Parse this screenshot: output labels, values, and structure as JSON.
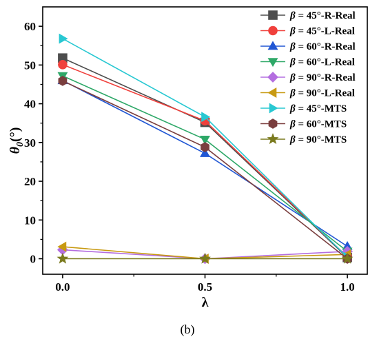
{
  "chart_data": {
    "type": "line",
    "xlabel": "λ",
    "ylabel_main": "θ",
    "ylabel_sub": "0",
    "ylabel_unit": "(°)",
    "caption": "(b)",
    "x": [
      0.0,
      0.5,
      1.0
    ],
    "x_ticks": [
      "0.0",
      "0.5",
      "1.0"
    ],
    "y_ticks": [
      "0",
      "10",
      "20",
      "30",
      "40",
      "50",
      "60"
    ],
    "xlim": [
      -0.07,
      1.07
    ],
    "ylim": [
      -4,
      65
    ],
    "legend_position": "top-right",
    "series": [
      {
        "name": "β = 45°-R-Real",
        "prefix": "β",
        "suffix": " = 45°-R-Real",
        "marker": "square",
        "color": "#4d4d4d",
        "values": [
          51.8,
          35.2,
          0.3
        ]
      },
      {
        "name": "β = 45°-L-Real",
        "prefix": "β",
        "suffix": " = 45°-L-Real",
        "marker": "circle",
        "color": "#f0403c",
        "values": [
          50.1,
          35.6,
          0.5
        ]
      },
      {
        "name": "β = 60°-R-Real",
        "prefix": "β",
        "suffix": " = 60°-R-Real",
        "marker": "triangle-up",
        "color": "#2157d4",
        "values": [
          46.0,
          27.2,
          3.2
        ]
      },
      {
        "name": "β = 60°-L-Real",
        "prefix": "β",
        "suffix": " = 60°-L-Real",
        "marker": "triangle-down",
        "color": "#2ea868",
        "values": [
          47.2,
          30.8,
          1.9
        ]
      },
      {
        "name": "β = 90°-R-Real",
        "prefix": "β",
        "suffix": " = 90°-R-Real",
        "marker": "diamond",
        "color": "#b46ee0",
        "values": [
          2.3,
          0.0,
          1.9
        ]
      },
      {
        "name": "β = 90°-L-Real",
        "prefix": "β",
        "suffix": " = 90°-L-Real",
        "marker": "triangle-left",
        "color": "#c89a12",
        "values": [
          3.1,
          0.0,
          1.1
        ]
      },
      {
        "name": "β = 45°-MTS",
        "prefix": "β",
        "suffix": " = 45°-MTS",
        "marker": "triangle-right",
        "color": "#28c8d2",
        "values": [
          56.8,
          36.6,
          0.4
        ]
      },
      {
        "name": "β = 60°-MTS",
        "prefix": "β",
        "suffix": " = 60°-MTS",
        "marker": "hexagon",
        "color": "#7a3e3e",
        "values": [
          45.9,
          28.8,
          0.0
        ]
      },
      {
        "name": "β = 90°-MTS",
        "prefix": "β",
        "suffix": " = 90°-MTS",
        "marker": "star",
        "color": "#7a7a1e",
        "values": [
          0.0,
          0.0,
          0.0
        ]
      }
    ]
  }
}
